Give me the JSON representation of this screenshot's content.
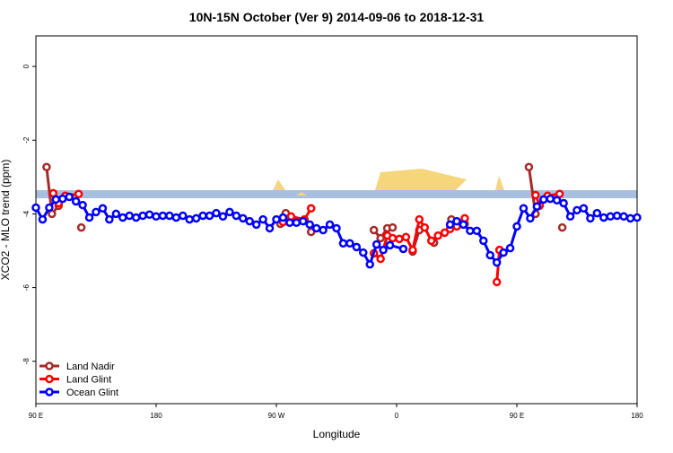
{
  "chart_data": {
    "type": "line",
    "title": "10N-15N October (Ver 9)   2014-09-06 to 2018-12-31",
    "x_label": "Longitude",
    "y_label": "XCO2 - MLO trend (ppm)",
    "xlim": [
      90,
      540
    ],
    "xticks": [
      {
        "value": 90,
        "label": "90 E"
      },
      {
        "value": 180,
        "label": "180"
      },
      {
        "value": 270,
        "label": "90 W"
      },
      {
        "value": 360,
        "label": "0"
      },
      {
        "value": 450,
        "label": "90 E"
      },
      {
        "value": 540,
        "label": "180"
      }
    ],
    "ylim": [
      -9.15,
      0.83
    ],
    "yticks": [
      0,
      -2,
      -4,
      -6,
      -8
    ],
    "legend": "bottom-left",
    "series": [
      {
        "name": "Land Nadir",
        "color": "#a52a2a",
        "x": [
          98,
          102,
          107,
          null,
          124,
          null,
          273,
          277,
          null,
          296,
          null,
          343,
          348,
          353,
          357,
          null,
          372,
          377,
          null,
          388,
          null,
          401,
          411,
          null,
          437,
          null,
          459,
          464,
          467,
          null,
          484
        ],
        "values": [
          -2.73,
          -4.0,
          -3.78,
          null,
          -4.37,
          null,
          -4.27,
          -3.98,
          null,
          -4.49,
          null,
          -4.44,
          -4.66,
          -4.39,
          -4.37,
          null,
          -5.02,
          -4.44,
          null,
          -4.78,
          null,
          -4.15,
          -4.27,
          null,
          -4.98,
          null,
          -2.73,
          -4.0,
          -3.78,
          null,
          -4.37
        ]
      },
      {
        "name": "Land Glint",
        "color": "#ff0000",
        "x": [
          103,
          107,
          112,
          122,
          null,
          275,
          281,
          291,
          296,
          null,
          343,
          348,
          353,
          357,
          362,
          367,
          372,
          377,
          381,
          386,
          391,
          396,
          400,
          405,
          411,
          null,
          435,
          437,
          null,
          464,
          467,
          473,
          482
        ],
        "values": [
          -3.44,
          -3.71,
          -3.51,
          -3.46,
          null,
          -4.22,
          -4.07,
          -4.15,
          -3.85,
          null,
          -5.07,
          -5.22,
          -4.59,
          -4.66,
          -4.68,
          -4.63,
          -4.98,
          -4.15,
          -4.37,
          -4.73,
          -4.59,
          -4.51,
          -4.41,
          -4.34,
          -4.12,
          null,
          -5.85,
          -4.98,
          null,
          -3.49,
          -3.76,
          -3.51,
          -3.46
        ]
      },
      {
        "name": "Ocean Glint",
        "color": "#0000ff",
        "x": [
          90,
          95,
          100,
          105,
          110,
          115,
          120,
          125,
          130,
          135,
          140,
          145,
          150,
          155,
          160,
          165,
          170,
          175,
          180,
          185,
          190,
          195,
          200,
          205,
          210,
          215,
          220,
          225,
          230,
          235,
          240,
          245,
          250,
          255,
          260,
          265,
          270,
          275,
          280,
          285,
          290,
          295,
          300,
          305,
          310,
          315,
          320,
          325,
          330,
          335,
          340,
          345,
          350,
          355,
          365,
          null,
          400,
          405,
          410,
          415,
          420,
          425,
          430,
          435,
          440,
          445,
          450,
          455,
          460,
          465,
          470,
          475,
          480,
          485,
          490,
          495,
          500,
          505,
          510,
          515,
          520,
          525,
          530,
          535,
          540
        ],
        "values": [
          -3.83,
          -4.15,
          -3.83,
          -3.61,
          -3.59,
          -3.54,
          -3.66,
          -3.76,
          -4.1,
          -3.95,
          -3.85,
          -4.15,
          -4.0,
          -4.1,
          -4.05,
          -4.1,
          -4.05,
          -4.02,
          -4.07,
          -4.05,
          -4.05,
          -4.1,
          -4.05,
          -4.15,
          -4.12,
          -4.05,
          -4.05,
          -3.98,
          -4.07,
          -3.95,
          -4.05,
          -4.12,
          -4.2,
          -4.29,
          -4.15,
          -4.39,
          -4.15,
          -4.1,
          -4.24,
          -4.24,
          -4.2,
          -4.29,
          -4.39,
          -4.44,
          -4.29,
          -4.39,
          -4.8,
          -4.8,
          -4.9,
          -5.05,
          -5.37,
          -4.83,
          -4.98,
          -4.85,
          -4.95,
          null,
          -4.29,
          -4.2,
          -4.29,
          -4.46,
          -4.46,
          -4.73,
          -5.12,
          -5.32,
          -5.05,
          -4.93,
          -4.34,
          -3.85,
          -4.12,
          -3.8,
          -3.61,
          -3.59,
          -3.63,
          -3.71,
          -4.07,
          -3.9,
          -3.85,
          -4.12,
          -3.98,
          -4.1,
          -4.07,
          -4.05,
          -4.07,
          -4.12,
          -4.1
        ]
      }
    ]
  }
}
